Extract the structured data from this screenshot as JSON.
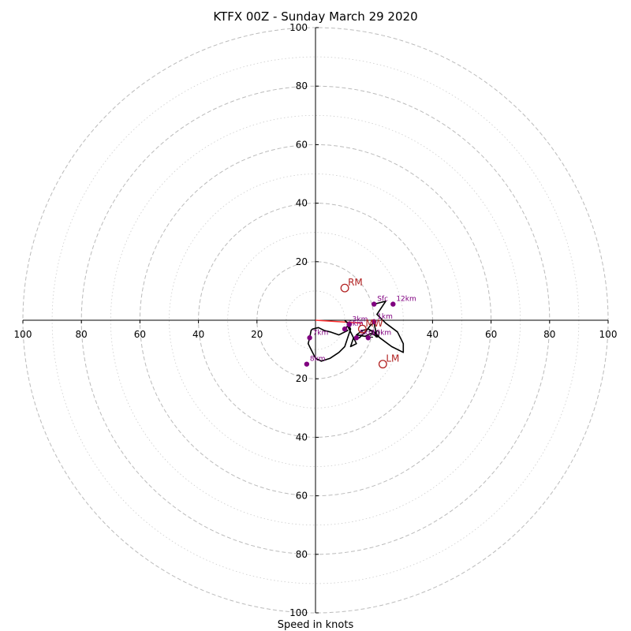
{
  "chart_data": {
    "type": "hodograph",
    "title": "KTFX 00Z - Sunday March 29 2020",
    "xlabel": "Speed in knots",
    "range": 100,
    "rings": {
      "major": [
        20,
        40,
        60,
        80,
        100
      ],
      "minor": [
        10,
        30,
        50,
        70,
        90
      ]
    },
    "ticks": {
      "x_negative": [
        "100",
        "80",
        "60",
        "40",
        "20"
      ],
      "x_positive": [
        "20",
        "40",
        "60",
        "80",
        "100"
      ],
      "y_positive": [
        "20",
        "40",
        "60",
        "80",
        "100"
      ],
      "y_negative": [
        "20",
        "40",
        "60",
        "80",
        "100"
      ]
    },
    "trace": [
      [
        20,
        5.5
      ],
      [
        24,
        6.5
      ],
      [
        21,
        2
      ],
      [
        24,
        -1
      ],
      [
        28,
        -4
      ],
      [
        30,
        -8
      ],
      [
        30,
        -11
      ],
      [
        26,
        -9
      ],
      [
        22,
        -6
      ],
      [
        20,
        -4
      ],
      [
        18,
        -3
      ],
      [
        16,
        -3.5
      ],
      [
        14,
        -5
      ],
      [
        17,
        -5.5
      ],
      [
        19,
        -4.5
      ],
      [
        21,
        -5.5
      ],
      [
        20,
        -1
      ],
      [
        19,
        -1.5
      ],
      [
        17,
        -4
      ],
      [
        15,
        -6
      ],
      [
        13,
        -6
      ],
      [
        12,
        -9
      ],
      [
        14,
        -8
      ],
      [
        13,
        -6
      ],
      [
        11,
        -2
      ],
      [
        10,
        -3
      ],
      [
        11,
        -3.5
      ],
      [
        9,
        -4.5
      ],
      [
        8,
        -5
      ],
      [
        5,
        -4
      ],
      [
        3,
        -3.5
      ],
      [
        1,
        -2.5
      ],
      [
        -1,
        -3
      ],
      [
        -1.5,
        -3.5
      ],
      [
        -2,
        -6
      ],
      [
        -2.5,
        -8
      ],
      [
        -1.5,
        -10
      ],
      [
        0,
        -13
      ],
      [
        2,
        -14
      ],
      [
        5,
        -13
      ],
      [
        8,
        -11
      ],
      [
        10,
        -9
      ],
      [
        11,
        -6
      ],
      [
        12,
        -3
      ],
      [
        11,
        -1
      ],
      [
        10,
        0
      ]
    ],
    "heights": [
      {
        "label": "Sfc",
        "u": 20,
        "v": 5.5
      },
      {
        "label": "12km",
        "u": 26.5,
        "v": 5.5
      },
      {
        "label": "1km",
        "u": 20,
        "v": -0.5
      },
      {
        "label": "3km",
        "u": 11.5,
        "v": -1.5
      },
      {
        "label": "5km",
        "u": 14,
        "v": -6
      },
      {
        "label": "10km",
        "u": 18,
        "v": -6
      },
      {
        "label": "6km",
        "u": 10,
        "v": -3
      },
      {
        "label": "7km",
        "u": -2,
        "v": -6
      },
      {
        "label": "8km",
        "u": -3,
        "v": -15
      }
    ],
    "motions": [
      {
        "label": "RM",
        "u": 10,
        "v": 11
      },
      {
        "label": "LM",
        "u": 23,
        "v": -15
      },
      {
        "label": "MW",
        "u": 16,
        "v": -3
      }
    ],
    "shear_vector": {
      "from": [
        0,
        0
      ],
      "to": [
        16,
        -1
      ]
    },
    "colors": {
      "trace": "#000000",
      "height_dot": "#800080",
      "height_label": "#800080",
      "motion": "#b22222",
      "shear": "#ff3030",
      "ring": "#bbbbbb"
    }
  }
}
